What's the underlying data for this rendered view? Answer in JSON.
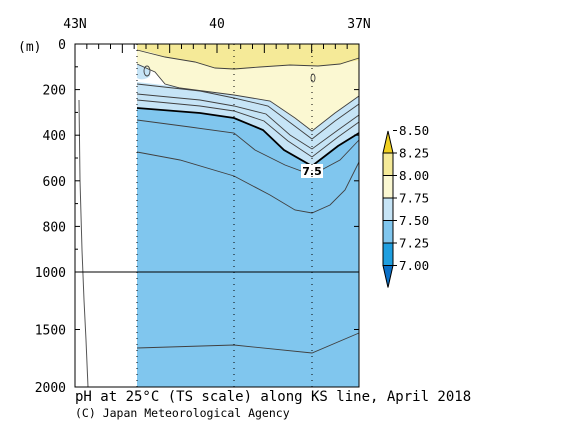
{
  "chart_data": {
    "type": "contour-section",
    "title": "pH at 25°C (TS scale) along KS line, April 2018",
    "credit": "(C) Japan Meteorological Agency",
    "x_axis": {
      "ticks": [
        {
          "label": "43N",
          "lat": 43
        },
        {
          "label": "40",
          "lat": 40
        },
        {
          "label": "37N",
          "lat": 37
        }
      ],
      "range": [
        43,
        37
      ]
    },
    "y_axis": {
      "unit_label": "(m)",
      "ticks": [
        {
          "label": "0",
          "depth": 0
        },
        {
          "label": "200",
          "depth": 200
        },
        {
          "label": "400",
          "depth": 400
        },
        {
          "label": "600",
          "depth": 600
        },
        {
          "label": "800",
          "depth": 800
        },
        {
          "label": "1000",
          "depth": 1000
        },
        {
          "label": "1500",
          "depth": 1500
        },
        {
          "label": "2000",
          "depth": 2000
        }
      ],
      "scale_break_depth": 1000,
      "range": [
        0,
        2000
      ]
    },
    "colorbar": {
      "levels": [
        "8.50",
        "8.25",
        "8.00",
        "7.75",
        "7.50",
        "7.25",
        "7.00"
      ],
      "colors": {
        "above_8.25": "#f0d020",
        "8.00-8.25": "#f5ea98",
        "7.75-8.00": "#fbf8d2",
        "7.50-7.75": "#c6e4f6",
        "7.25-7.50": "#80c6ee",
        "7.00-7.25": "#1f9fe0",
        "below_7.00": "#0a70c8"
      }
    },
    "contour_label": "7.5",
    "station_lats": [
      41.55,
      40.2,
      38.65
    ],
    "section_data_range_lat": [
      41.55,
      37
    ],
    "colors": {
      "section_blue": "#80c6ee",
      "light_blue": "#c6e4f6",
      "pale_yellow": "#fbf8d2",
      "yellow": "#f5ea98"
    }
  }
}
